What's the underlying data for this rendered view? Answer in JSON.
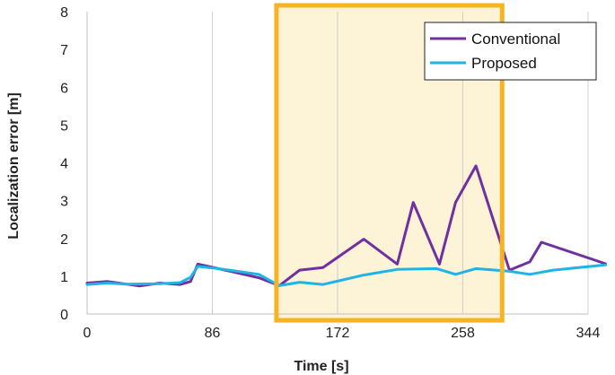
{
  "chart_data": {
    "type": "line",
    "title": "",
    "xlabel": "Time [s]",
    "ylabel": "Localization error [m]",
    "xlim": [
      0,
      344
    ],
    "ylim": [
      0,
      8
    ],
    "xticks": [
      0,
      86,
      172,
      258,
      344
    ],
    "yticks": [
      0,
      1,
      2,
      3,
      4,
      5,
      6,
      7,
      8
    ],
    "grid": "vertical",
    "legend": "top-right",
    "highlight": {
      "x_start": 130,
      "x_end": 285,
      "fill": "#fdf3d6",
      "border": "#f9b320"
    },
    "series": [
      {
        "name": "Conventional",
        "color": "#7030a0",
        "points": [
          [
            0,
            0.82
          ],
          [
            14,
            0.86
          ],
          [
            27,
            0.79
          ],
          [
            36,
            0.74
          ],
          [
            50,
            0.82
          ],
          [
            64,
            0.78
          ],
          [
            71,
            0.86
          ],
          [
            76,
            1.32
          ],
          [
            90,
            1.2
          ],
          [
            118,
            0.96
          ],
          [
            132,
            0.75
          ],
          [
            146,
            1.16
          ],
          [
            162,
            1.23
          ],
          [
            190,
            1.98
          ],
          [
            213,
            1.32
          ],
          [
            224,
            2.95
          ],
          [
            242,
            1.32
          ],
          [
            253,
            2.95
          ],
          [
            267,
            3.92
          ],
          [
            290,
            1.16
          ],
          [
            304,
            1.38
          ],
          [
            312,
            1.9
          ],
          [
            356,
            1.33
          ]
        ]
      },
      {
        "name": "Proposed",
        "color": "#1fb4e6",
        "points": [
          [
            0,
            0.78
          ],
          [
            14,
            0.82
          ],
          [
            27,
            0.79
          ],
          [
            50,
            0.8
          ],
          [
            64,
            0.83
          ],
          [
            71,
            0.97
          ],
          [
            76,
            1.26
          ],
          [
            90,
            1.2
          ],
          [
            118,
            1.05
          ],
          [
            132,
            0.75
          ],
          [
            146,
            0.84
          ],
          [
            162,
            0.78
          ],
          [
            190,
            1.03
          ],
          [
            213,
            1.18
          ],
          [
            240,
            1.2
          ],
          [
            253,
            1.05
          ],
          [
            267,
            1.2
          ],
          [
            290,
            1.13
          ],
          [
            304,
            1.05
          ],
          [
            320,
            1.16
          ],
          [
            356,
            1.3
          ]
        ]
      }
    ]
  }
}
